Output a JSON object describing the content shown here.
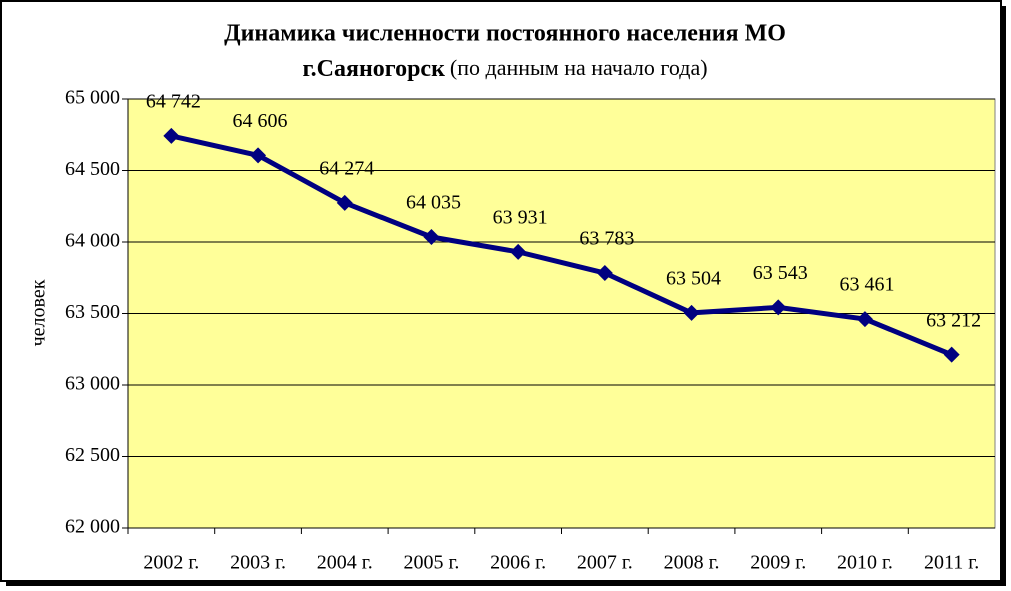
{
  "chart_data": {
    "type": "line",
    "title": [
      "Динамика численности постоянного населения МО",
      "г.Саяногорск"
    ],
    "subtitle": "(по данным на начало года)",
    "y_label": "человек",
    "categories": [
      "2002 г.",
      "2003 г.",
      "2004 г.",
      "2005 г.",
      "2006 г.",
      "2007 г.",
      "2008 г.",
      "2009 г.",
      "2010 г.",
      "2011 г."
    ],
    "series": [
      {
        "name": "человек",
        "color": "#000080",
        "values": [
          64742,
          64606,
          64274,
          64035,
          63931,
          63783,
          63504,
          63543,
          63461,
          63212
        ],
        "value_labels": [
          "64 742",
          "64 606",
          "64 274",
          "64 035",
          "63 931",
          "63 783",
          "63 504",
          "63 543",
          "63 461",
          "63 212"
        ]
      }
    ],
    "ylim": [
      62000,
      65000
    ],
    "yticks": [
      {
        "value": 62000,
        "label": "62 000"
      },
      {
        "value": 62500,
        "label": "62 500"
      },
      {
        "value": 63000,
        "label": "63 000"
      },
      {
        "value": 63500,
        "label": "63 500"
      },
      {
        "value": 64000,
        "label": "64 000"
      },
      {
        "value": 64500,
        "label": "64 500"
      },
      {
        "value": 65000,
        "label": "65 000"
      }
    ],
    "grid": true,
    "plot_background": "#ffff99"
  }
}
